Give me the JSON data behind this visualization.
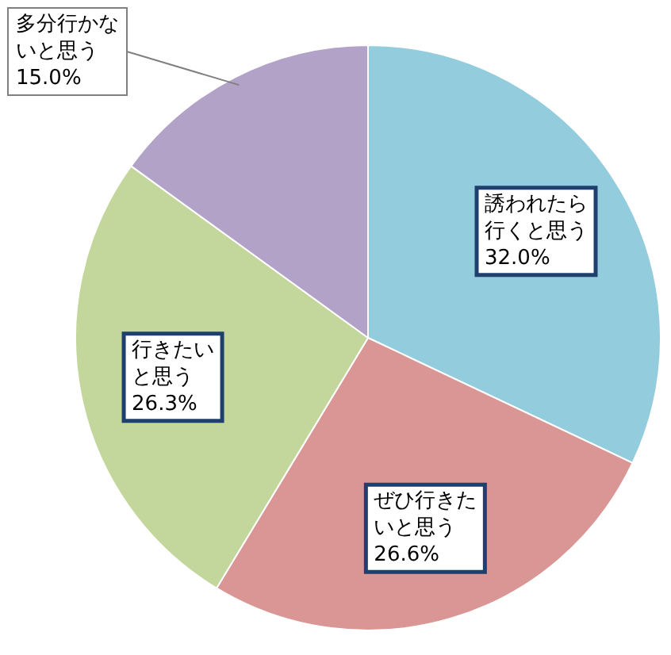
{
  "chart_data": {
    "type": "pie",
    "categories": [
      "誘われたら行くと思う",
      "ぜひ行きたいと思う",
      "行きたいと思う",
      "多分行かないと思う"
    ],
    "values": [
      32.0,
      26.6,
      26.3,
      15.0
    ],
    "value_labels": [
      "32.0%",
      "26.6%",
      "26.3%",
      "15.0%"
    ],
    "colors": [
      "#93cddd",
      "#d99694",
      "#c3d69b",
      "#b3a2c7"
    ],
    "legend": false
  }
}
